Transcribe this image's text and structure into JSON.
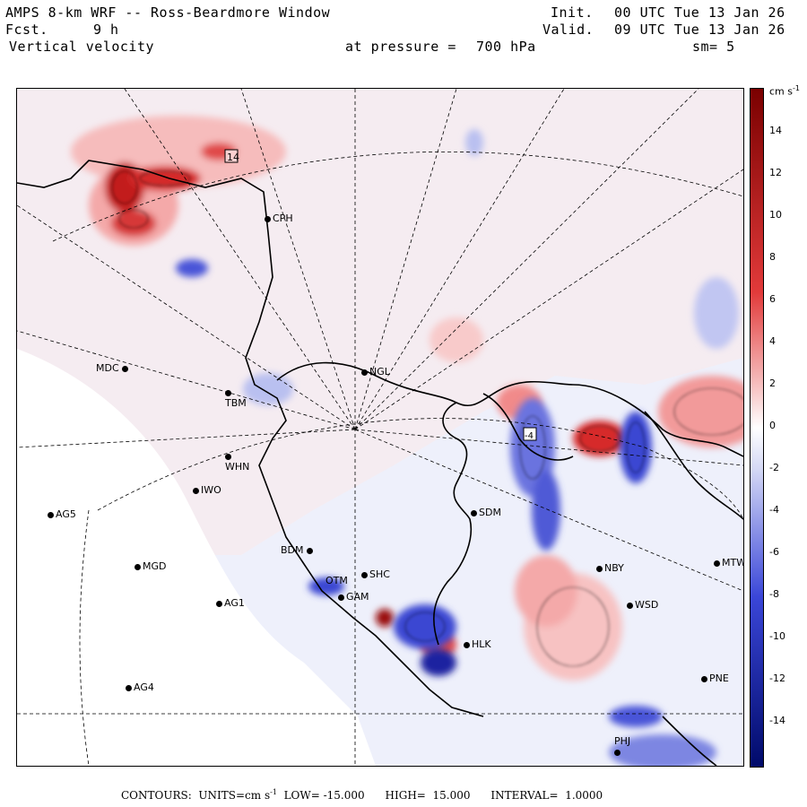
{
  "header": {
    "title": "AMPS 8-km WRF -- Ross-Beardmore Window",
    "forecast_label": "Fcst.",
    "forecast_hours": "9 h",
    "variable": "Vertical velocity",
    "pressure_label": "at pressure =",
    "pressure_value": "700 hPa",
    "init_label": "Init.",
    "init_time": "00 UTC Tue 13 Jan 26",
    "valid_label": "Valid.",
    "valid_time": "09 UTC Tue 13 Jan 26",
    "smoothing": "sm= 5"
  },
  "map": {
    "stations": [
      {
        "id": "CPH",
        "label": "CPH"
      },
      {
        "id": "NGL",
        "label": "NGL"
      },
      {
        "id": "MDC",
        "label": "MDC"
      },
      {
        "id": "TBM",
        "label": "TBM"
      },
      {
        "id": "WHN",
        "label": "WHN"
      },
      {
        "id": "IWO",
        "label": "IWO"
      },
      {
        "id": "AG5",
        "label": "AG5"
      },
      {
        "id": "SDM",
        "label": "SDM"
      },
      {
        "id": "BDM",
        "label": "BDM"
      },
      {
        "id": "MGD",
        "label": "MGD"
      },
      {
        "id": "SHC",
        "label": "SHC"
      },
      {
        "id": "OTM",
        "label": "OTM"
      },
      {
        "id": "GAM",
        "label": "GAM"
      },
      {
        "id": "AG1",
        "label": "AG1"
      },
      {
        "id": "NBY",
        "label": "NBY"
      },
      {
        "id": "MTW",
        "label": "MTW"
      },
      {
        "id": "WSD",
        "label": "WSD"
      },
      {
        "id": "HLK",
        "label": "HLK"
      },
      {
        "id": "PNE",
        "label": "PNE"
      },
      {
        "id": "AG4",
        "label": "AG4"
      },
      {
        "id": "PHJ",
        "label": "PHJ"
      }
    ],
    "extrema_labels": [
      "14",
      "-4"
    ],
    "colors": {
      "positive_max": "#7a0000",
      "positive_mid": "#e23a3a",
      "positive_light": "#f8cccc",
      "neutral": "#ffffff",
      "negative_light": "#d5d9f5",
      "negative_mid": "#3a46d8",
      "negative_max": "#000a6a",
      "background_field": "#eef0fb"
    }
  },
  "colorbar": {
    "units": "cm s",
    "units_exp": "-1",
    "ticks": [
      "14",
      "12",
      "10",
      "8",
      "6",
      "4",
      "2",
      "0",
      "-2",
      "-4",
      "-6",
      "-8",
      "-10",
      "-12",
      "-14"
    ]
  },
  "footer": {
    "contours_label": "CONTOURS:",
    "units_label": "UNITS=cm s",
    "units_exp": "-1",
    "low_label": "LOW=",
    "low_value": "-15.000",
    "high_label": "HIGH=",
    "high_value": "15.000",
    "interval_label": "INTERVAL=",
    "interval_value": "1.0000"
  }
}
